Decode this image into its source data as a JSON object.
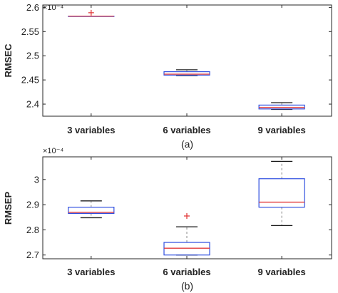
{
  "chart_data": [
    {
      "type": "box",
      "panel_label": "(a)",
      "ylabel": "RMSEC",
      "exponent_label": "×10⁻⁴",
      "ylim": [
        2.375,
        2.605
      ],
      "yticks": [
        2.4,
        2.45,
        2.5,
        2.55,
        2.6
      ],
      "ytick_labels": [
        "2.4",
        "2.45",
        "2.5",
        "2.55",
        "2.6"
      ],
      "categories": [
        "3 variables",
        "6 variables",
        "9 variables"
      ],
      "boxes": [
        {
          "whisker_low": 2.582,
          "q1": 2.582,
          "median": 2.582,
          "q3": 2.582,
          "whisker_high": 2.582,
          "outliers": [
            2.589
          ]
        },
        {
          "whisker_low": 2.459,
          "q1": 2.46,
          "median": 2.462,
          "q3": 2.467,
          "whisker_high": 2.471,
          "outliers": []
        },
        {
          "whisker_low": 2.389,
          "q1": 2.39,
          "median": 2.393,
          "q3": 2.398,
          "whisker_high": 2.403,
          "outliers": []
        }
      ]
    },
    {
      "type": "box",
      "panel_label": "(b)",
      "ylabel": "RMSEP",
      "exponent_label": "×10⁻⁴",
      "ylim": [
        2.685,
        3.09
      ],
      "yticks": [
        2.7,
        2.8,
        2.9,
        3.0
      ],
      "ytick_labels": [
        "2.7",
        "2.8",
        "2.9",
        "3"
      ],
      "categories": [
        "3 variables",
        "6 variables",
        "9 variables"
      ],
      "boxes": [
        {
          "whisker_low": 2.848,
          "q1": 2.865,
          "median": 2.87,
          "q3": 2.89,
          "whisker_high": 2.915,
          "outliers": []
        },
        {
          "whisker_low": 2.7,
          "q1": 2.7,
          "median": 2.727,
          "q3": 2.75,
          "whisker_high": 2.812,
          "outliers": [
            2.855
          ]
        },
        {
          "whisker_low": 2.817,
          "q1": 2.89,
          "median": 2.91,
          "q3": 3.003,
          "whisker_high": 3.072,
          "outliers": []
        }
      ]
    }
  ],
  "colors": {
    "box": "#2f4fe0",
    "median": "#e23b3b",
    "whisker": "#8a8a8a",
    "cap": "#1a1a1a",
    "outlier": "#e23b3b",
    "axis": "#262626"
  }
}
